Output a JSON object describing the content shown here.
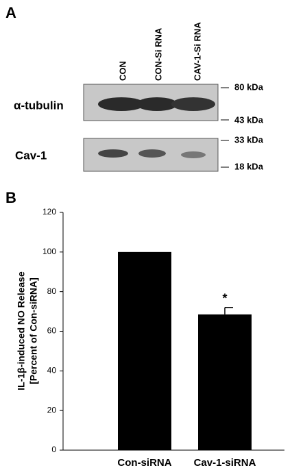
{
  "panel_a": {
    "label": "A",
    "lanes": [
      "CON",
      "CON-Si RNA",
      "CAV-1-Si RNA"
    ],
    "rows": [
      {
        "label": "α-tubulin",
        "markers": [
          "80 kDa",
          "43 kDa"
        ]
      },
      {
        "label": "Cav-1",
        "markers": [
          "33 kDa",
          "18 kDa"
        ]
      }
    ]
  },
  "chart_data": {
    "type": "bar",
    "panel_label": "B",
    "ylabel": [
      "IL-1β-induced NO Release",
      "[Percent of Con-siRNA]"
    ],
    "categories": [
      "Con-siRNA",
      "Cav-1-siRNA"
    ],
    "values": [
      100,
      68.5
    ],
    "errors": [
      null,
      3.5
    ],
    "markers": [
      null,
      "*"
    ],
    "color": "#000000",
    "ylim": [
      0,
      120
    ],
    "yticks": [
      0,
      20,
      40,
      60,
      80,
      100,
      120
    ]
  }
}
